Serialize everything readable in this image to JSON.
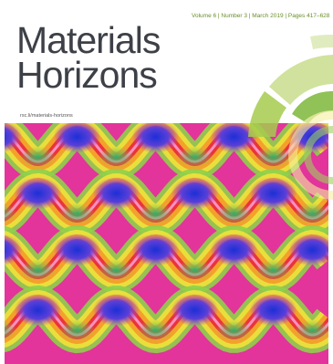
{
  "header": {
    "issue": "Volume 6 | Number 3 | March 2019 | Pages 417–628",
    "title_line1": "Materials",
    "title_line2": "Horizons",
    "url": "rsc.li/materials-horizons"
  }
}
